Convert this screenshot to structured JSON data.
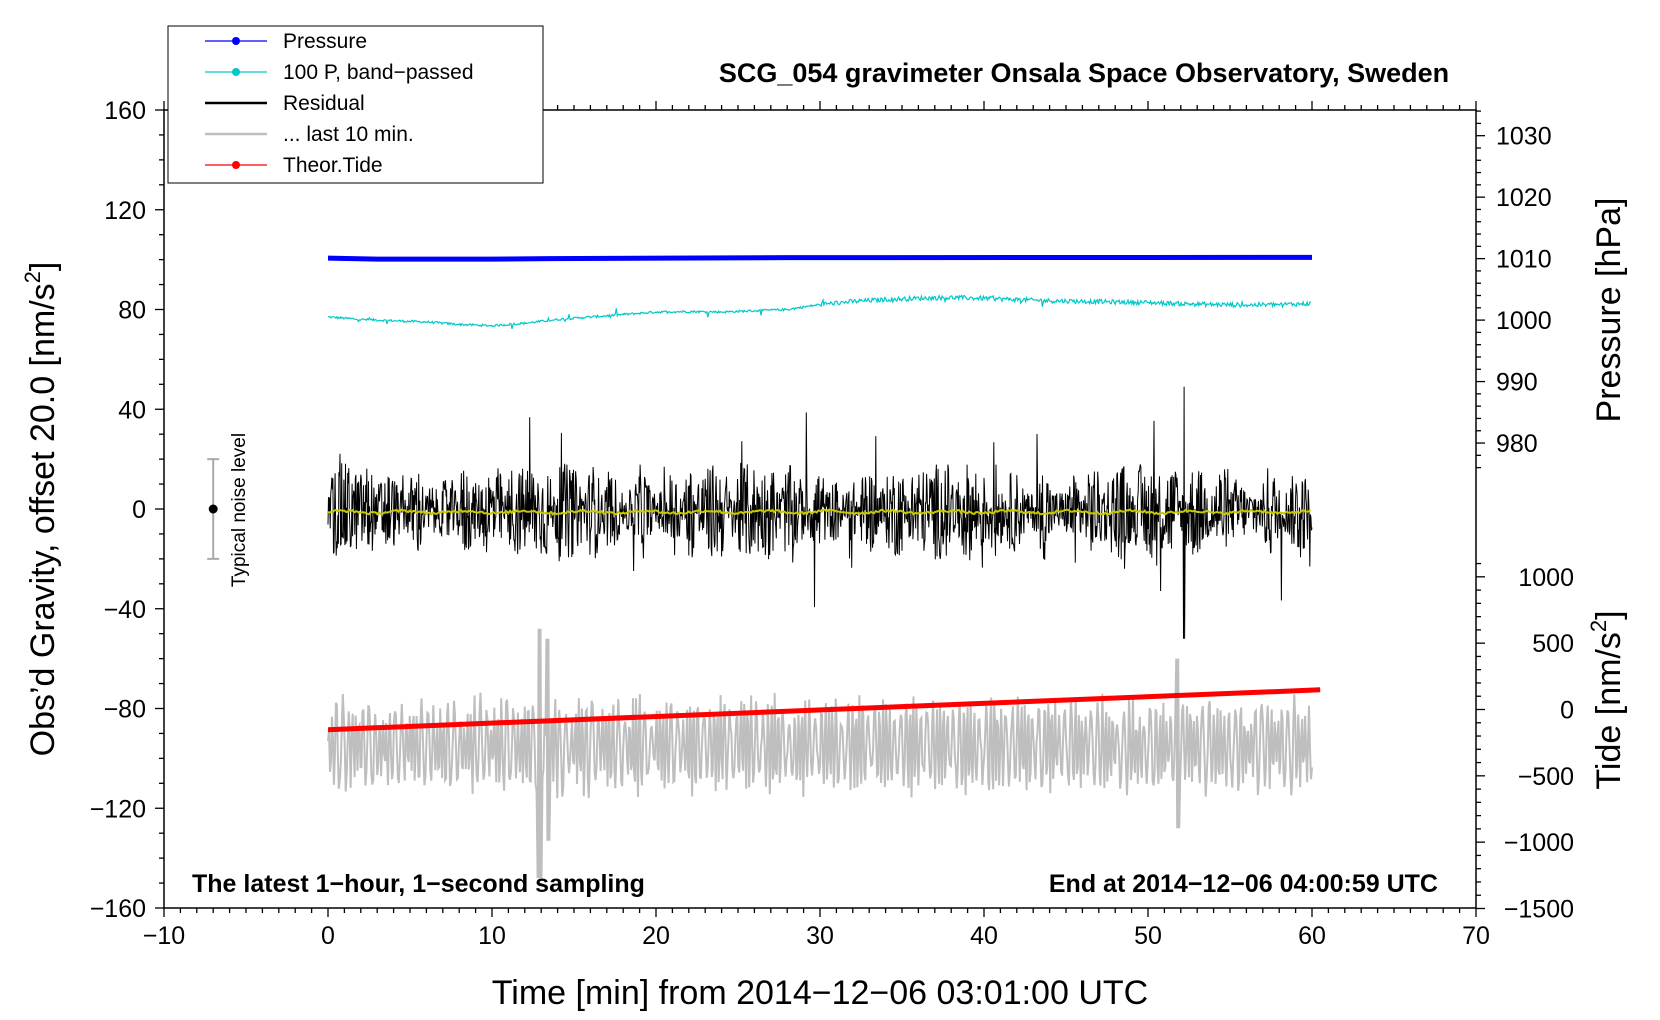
{
  "chart_data": {
    "type": "line",
    "title": "SCG_054 gravimeter Onsala Space Observatory, Sweden",
    "xlabel": "Time [min] from 2014−12−06 03:01:00 UTC",
    "ylabel_main": "Obs’d Gravity, offset 20.0 [nm/s",
    "ylabel_main_sup": "2",
    "ylabel_main_end": "]",
    "ylabel_pressure": "Pressure [hPa]",
    "ylabel_tide": "Tide [nm/s",
    "ylabel_tide_sup": "2",
    "ylabel_tide_end": "]",
    "xlim": [
      -10,
      70
    ],
    "ylim": [
      -160,
      160
    ],
    "x_ticks": [
      -10,
      0,
      10,
      20,
      30,
      40,
      50,
      60,
      70
    ],
    "x_tick_labels": [
      "−10",
      "0",
      "10",
      "20",
      "30",
      "40",
      "50",
      "60",
      "70"
    ],
    "y_ticks": [
      -160,
      -120,
      -80,
      -40,
      0,
      40,
      80,
      120,
      160
    ],
    "y_tick_labels": [
      "−160",
      "−120",
      "−80",
      "−40",
      "0",
      "40",
      "80",
      "120",
      "160"
    ],
    "pressure_ticks": [
      980,
      990,
      1000,
      1010,
      1020,
      1030
    ],
    "pressure_tick_labels": [
      "980",
      "990",
      "1000",
      "1010",
      "1020",
      "1030"
    ],
    "pressure_scale": {
      "base_pressure": 1010,
      "base_y": 100.4,
      "units_per_hpa": 2.465
    },
    "tide_ticks": [
      -1500,
      -1000,
      -500,
      0,
      500,
      1000
    ],
    "tide_tick_labels": [
      "−1500",
      "−1000",
      "−500",
      "0",
      "500",
      "1000"
    ],
    "tide_scale": {
      "base_tide": 0,
      "base_y": -80.4,
      "units_per_tide": 0.0532
    },
    "legend": [
      {
        "label": "Pressure",
        "color": "#0000ff",
        "marker": true
      },
      {
        "label": "100 P, band−passed",
        "color": "#00c8c8",
        "marker": true
      },
      {
        "label": "Residual",
        "color": "#000000",
        "marker": false
      },
      {
        "label": "... last 10 min.",
        "color": "#bebebe",
        "marker": false
      },
      {
        "label": "Theor.Tide",
        "color": "#ff0000",
        "marker": true
      }
    ],
    "annotations": {
      "noise_label": "Typical noise level",
      "noise_center": 0,
      "noise_halfwidth": 20,
      "noise_x": -7,
      "bottom_left": "The latest 1−hour, 1−second sampling",
      "bottom_right": "End at 2014−12−06 04:00:59 UTC"
    },
    "series": [
      {
        "name": "Pressure",
        "color": "#0000ff",
        "x": [
          0,
          3,
          10,
          13.5,
          28,
          60
        ],
        "y": [
          100.6,
          100.2,
          100.2,
          100.4,
          100.8,
          100.9
        ]
      },
      {
        "name": "100 P, band−passed",
        "color": "#00c8c8",
        "x": [
          0,
          2,
          4,
          6,
          8,
          10,
          12,
          14,
          16,
          18,
          20,
          22,
          24,
          26,
          28,
          30,
          32,
          34,
          36,
          38,
          40,
          42,
          44,
          46,
          48,
          50,
          52,
          54,
          56,
          58,
          60
        ],
        "y": [
          77,
          76,
          75.5,
          75,
          74,
          73.5,
          74.5,
          76,
          77,
          78,
          79,
          79.2,
          79,
          79.5,
          80,
          82,
          83.2,
          84,
          84.5,
          84.8,
          84.5,
          84,
          83.5,
          83.3,
          83,
          82.8,
          82.3,
          82,
          81.8,
          82,
          82.4
        ]
      },
      {
        "name": "Residual",
        "color": "#000000",
        "x_range": [
          0,
          60
        ],
        "center": -1,
        "typical_amplitude": 14,
        "max": 49,
        "max_x": 52.2,
        "min": -52,
        "min_x": 52.2
      },
      {
        "name": "Residual (smoothed)",
        "color": "#c8c800",
        "x_range": [
          0,
          60
        ],
        "center": -1.2
      },
      {
        "name": "... last 10 min.",
        "color": "#bebebe",
        "x_range": [
          0,
          60
        ],
        "center": -95,
        "typical_amplitude": 18,
        "max": -48,
        "max_x": 12.9,
        "min": -148,
        "min_x": 12.9
      },
      {
        "name": "Theor.Tide",
        "color": "#ff0000",
        "x": [
          0,
          60.5
        ],
        "y": [
          -88.5,
          -72.5
        ]
      }
    ]
  }
}
